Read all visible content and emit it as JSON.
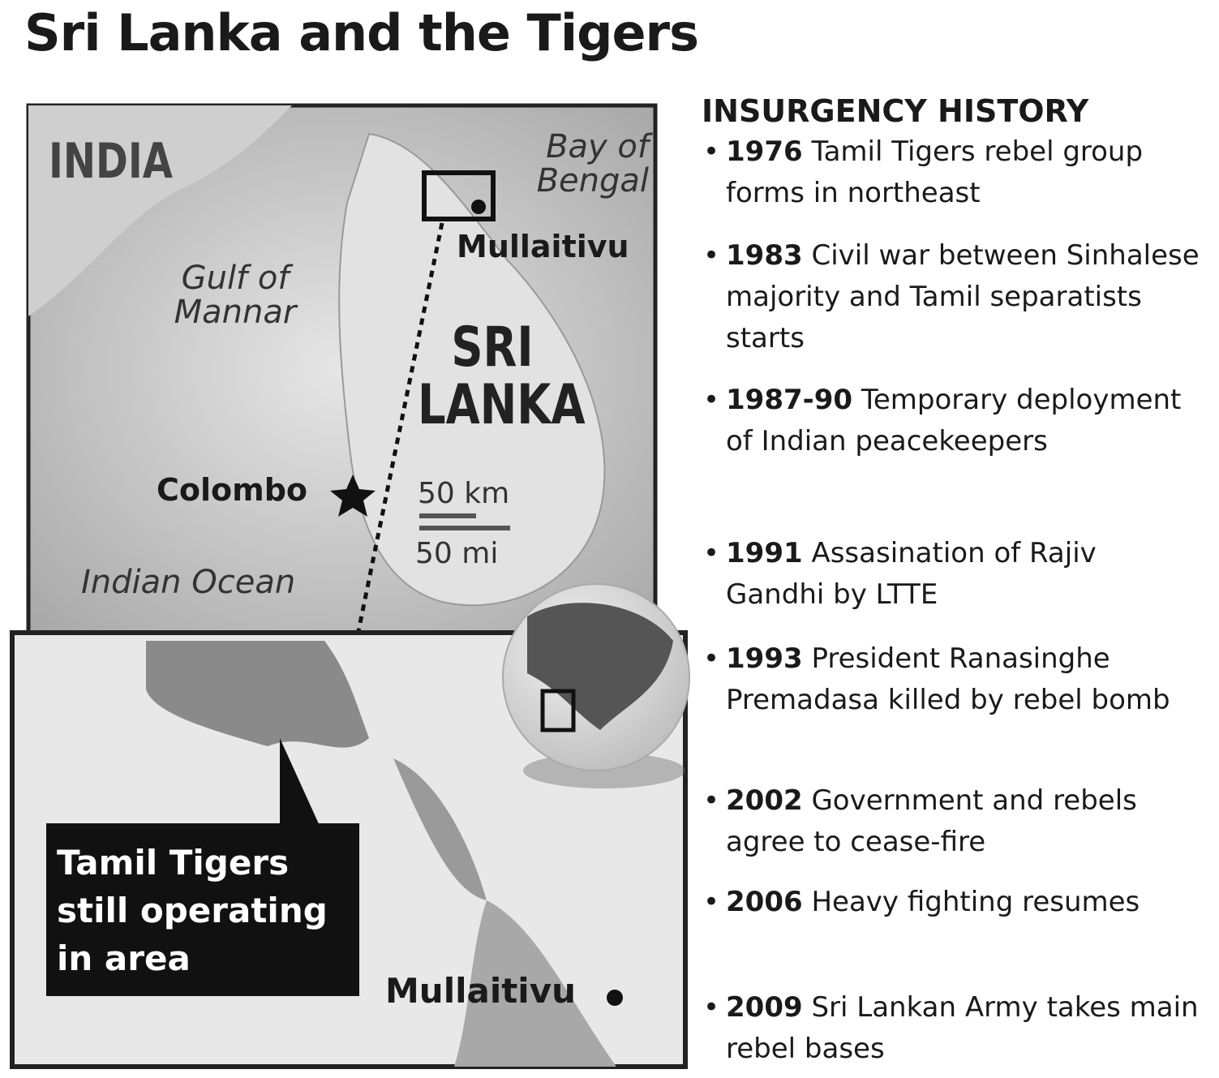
{
  "title": "Sri Lanka and the Tigers",
  "map": {
    "india": "INDIA",
    "bay_of_bengal": "Bay of Bengal",
    "mullaitivu": "Mullaitivu",
    "gulf_of_mannar": "Gulf of Mannar",
    "sri_lanka": "SRI LANKA",
    "colombo": "Colombo",
    "scale_km": "50 km",
    "scale_mi": "50 mi",
    "indian_ocean": "Indian Ocean"
  },
  "inset": {
    "callout": "Tamil Tigers still operating in area",
    "mullaitivu": "Mullaitivu"
  },
  "history": {
    "heading": "INSURGENCY HISTORY",
    "events": [
      {
        "year": "1976",
        "text": "Tamil Tigers rebel group forms in northeast"
      },
      {
        "year": "1983",
        "text": "Civil war between Sinhalese majority and Tamil separatists starts"
      },
      {
        "year": "1987-90",
        "text": "Temporary deployment of Indian peacekeepers"
      },
      {
        "year": "1991",
        "text": "Assasination of Rajiv Gandhi by LTTE"
      },
      {
        "year": "1993",
        "text": "President Ranasinghe Premadasa killed by rebel bomb"
      },
      {
        "year": "2002",
        "text": "Government and rebels agree to cease-fire"
      },
      {
        "year": "2006",
        "text": "Heavy fighting resumes"
      },
      {
        "year": "2009",
        "text": "Sri Lankan Army takes main rebel bases"
      }
    ]
  }
}
